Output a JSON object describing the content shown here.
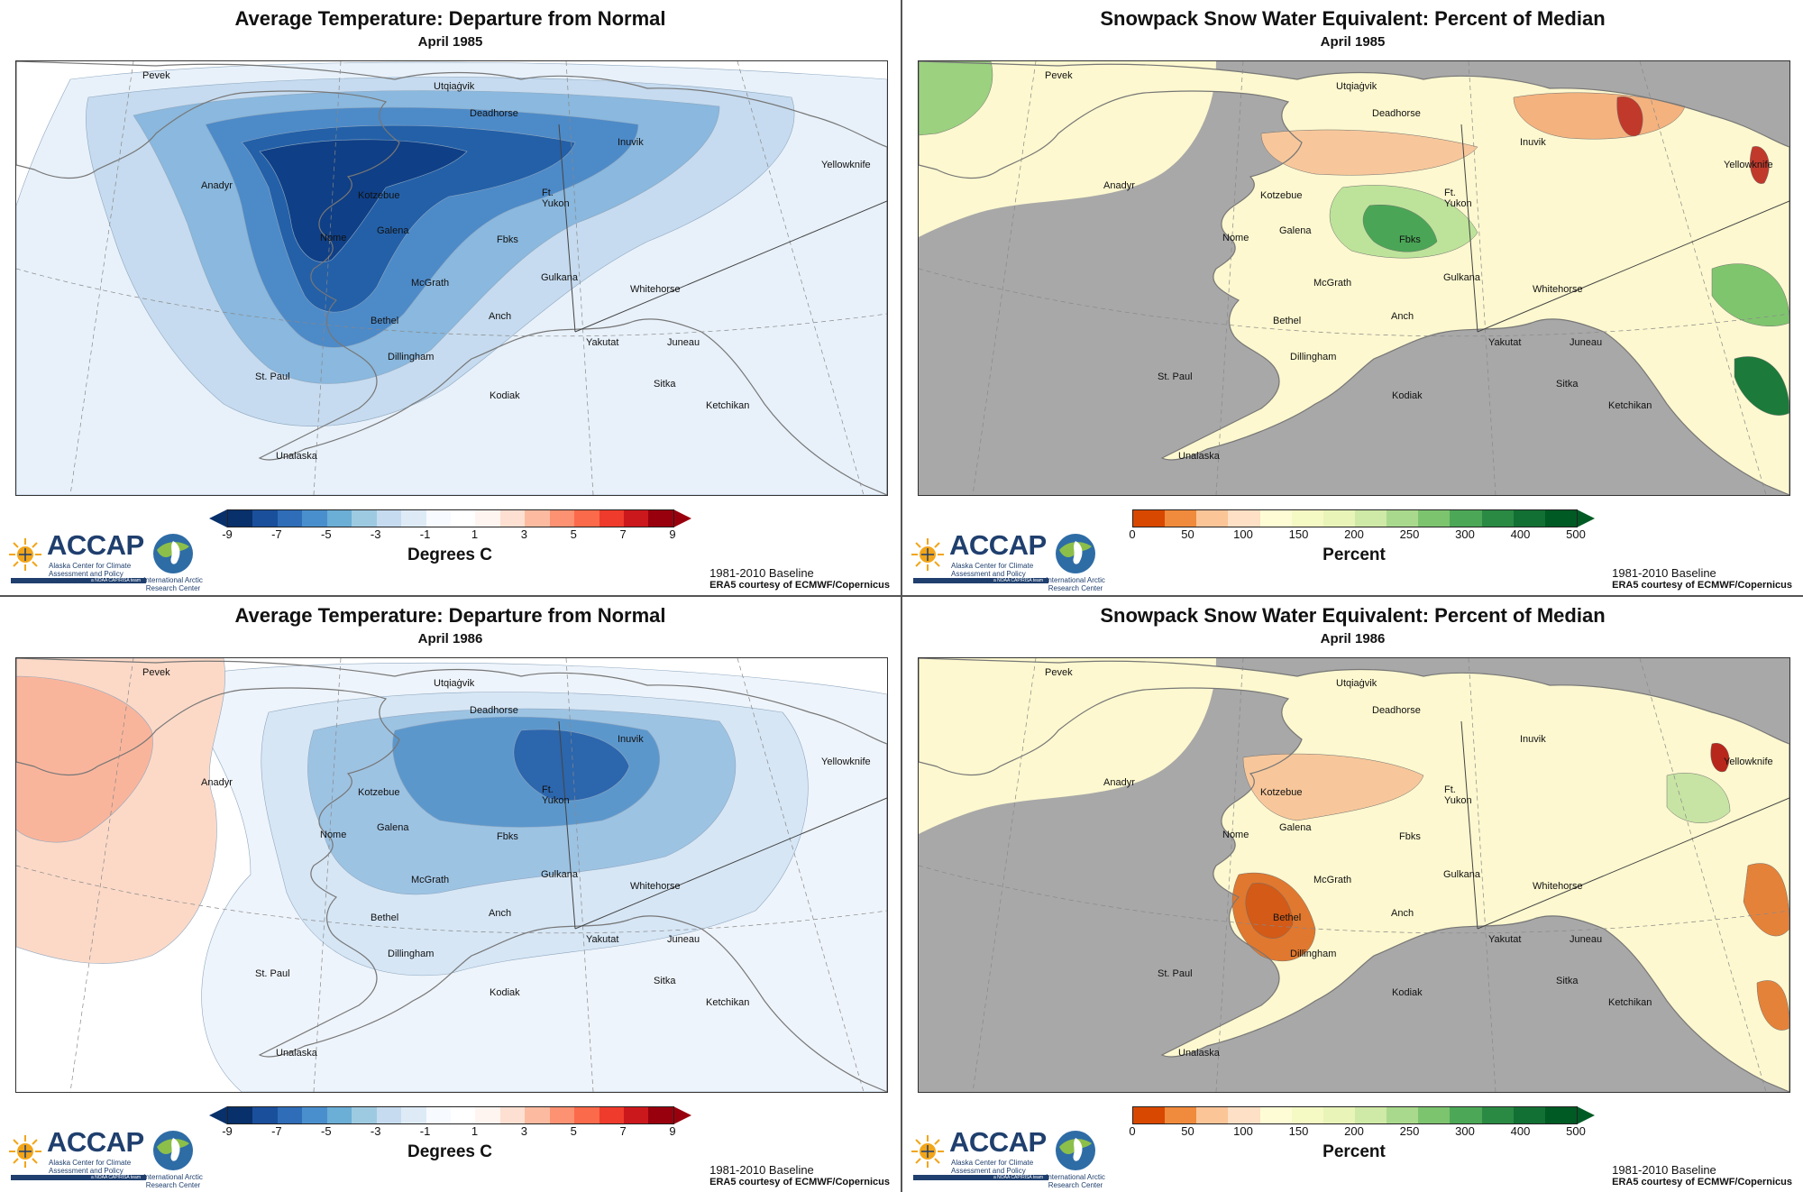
{
  "panels": [
    {
      "title": "Average Temperature: Departure from Normal",
      "subtitle": "April 1985",
      "unit": "Degrees C",
      "kind": "temp"
    },
    {
      "title": "Snowpack Snow Water Equivalent: Percent of Median",
      "subtitle": "April 1985",
      "unit": "Percent",
      "kind": "swe"
    },
    {
      "title": "Average Temperature: Departure from Normal",
      "subtitle": "April 1986",
      "unit": "Degrees C",
      "kind": "temp"
    },
    {
      "title": "Snowpack Snow Water Equivalent: Percent of Median",
      "subtitle": "April 1986",
      "unit": "Percent",
      "kind": "swe"
    }
  ],
  "temp_scale": {
    "ticks": [
      "-9",
      "-7",
      "-5",
      "-3",
      "-1",
      "1",
      "3",
      "5",
      "7",
      "9"
    ],
    "colors": [
      "#08306b",
      "#1a4f9c",
      "#2f6db8",
      "#4a8fcd",
      "#6baed6",
      "#9ecae1",
      "#c6dbef",
      "#deebf7",
      "#f7fbff",
      "#ffffff",
      "#fff5f0",
      "#fde0d2",
      "#fcbba1",
      "#fc9272",
      "#fb6a4a",
      "#ef3b2c",
      "#cb181d",
      "#99000d"
    ]
  },
  "swe_scale": {
    "ticks": [
      "0",
      "50",
      "100",
      "150",
      "200",
      "250",
      "300",
      "400",
      "500"
    ],
    "colors": [
      "#d94801",
      "#f08a3c",
      "#fbc598",
      "#fde0c5",
      "#fefcd5",
      "#f5f9c4",
      "#e8f4b8",
      "#cfe9a6",
      "#a9d98d",
      "#7dc46f",
      "#4ca857",
      "#2a8a43",
      "#137034",
      "#005a24"
    ]
  },
  "cities": [
    "Pevek",
    "Utqiaġvik",
    "Deadhorse",
    "Inuvik",
    "Yellowknife",
    "Anadyr",
    "Kotzebue",
    "Ft.",
    "Yukon",
    "Galena",
    "Nome",
    "Fbks",
    "McGrath",
    "Gulkana",
    "Whitehorse",
    "Bethel",
    "Anch",
    "Yakutat",
    "Juneau",
    "Dillingham",
    "St. Paul",
    "Sitka",
    "Kodiak",
    "Ketchikan",
    "Unalaska"
  ],
  "logo": {
    "name": "ACCAP",
    "line1": "Alaska Center for Climate",
    "line2": "Assessment and Policy",
    "line3": "a NOAA CAP/RISA team",
    "partner1": "International Arctic",
    "partner2": "Research Center"
  },
  "credits": {
    "baseline": "1981-2010 Baseline",
    "source": "ERA5 courtesy of ECMWF/Copernicus"
  },
  "colors": {
    "ocean_swe": "#a8a8a8",
    "land_outline": "#777777",
    "accent": "#1f3f6e"
  }
}
